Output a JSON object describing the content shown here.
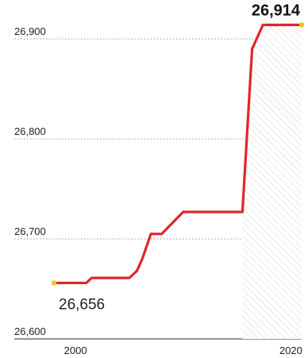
{
  "chart_data": {
    "type": "line",
    "title": "",
    "xlabel": "",
    "ylabel": "",
    "xlim": [
      1998,
      2021
    ],
    "ylim": [
      26600,
      26930
    ],
    "y_ticks": [
      26900,
      26800,
      26700,
      26600
    ],
    "y_tick_labels": [
      "26,900",
      "26,800",
      "26,700",
      "26,600"
    ],
    "x_ticks": [
      2000,
      2020
    ],
    "x_tick_labels": [
      "2000",
      "2020"
    ],
    "grid": "horizontal-dotted",
    "series": [
      {
        "color": "#e0262a",
        "points": [
          [
            1998,
            26656
          ],
          [
            2000,
            26656
          ],
          [
            2001,
            26656
          ],
          [
            2001.5,
            26661
          ],
          [
            2003,
            26661
          ],
          [
            2004,
            26661
          ],
          [
            2005,
            26661
          ],
          [
            2005.7,
            26668
          ],
          [
            2006.2,
            26680
          ],
          [
            2007,
            26705
          ],
          [
            2008,
            26705
          ],
          [
            2010,
            26727
          ],
          [
            2015.5,
            26727
          ],
          [
            2016.4,
            26890
          ],
          [
            2017.4,
            26914
          ],
          [
            2021,
            26914
          ]
        ]
      }
    ],
    "annotations": [
      {
        "text": "26,656",
        "x": 1998,
        "y": 26656,
        "bold": false
      },
      {
        "text": "26,914",
        "x": 2021,
        "y": 26914,
        "bold": true
      }
    ],
    "endpoint_color": "#f2c318",
    "fill_pattern": "diagonal-hatch"
  }
}
